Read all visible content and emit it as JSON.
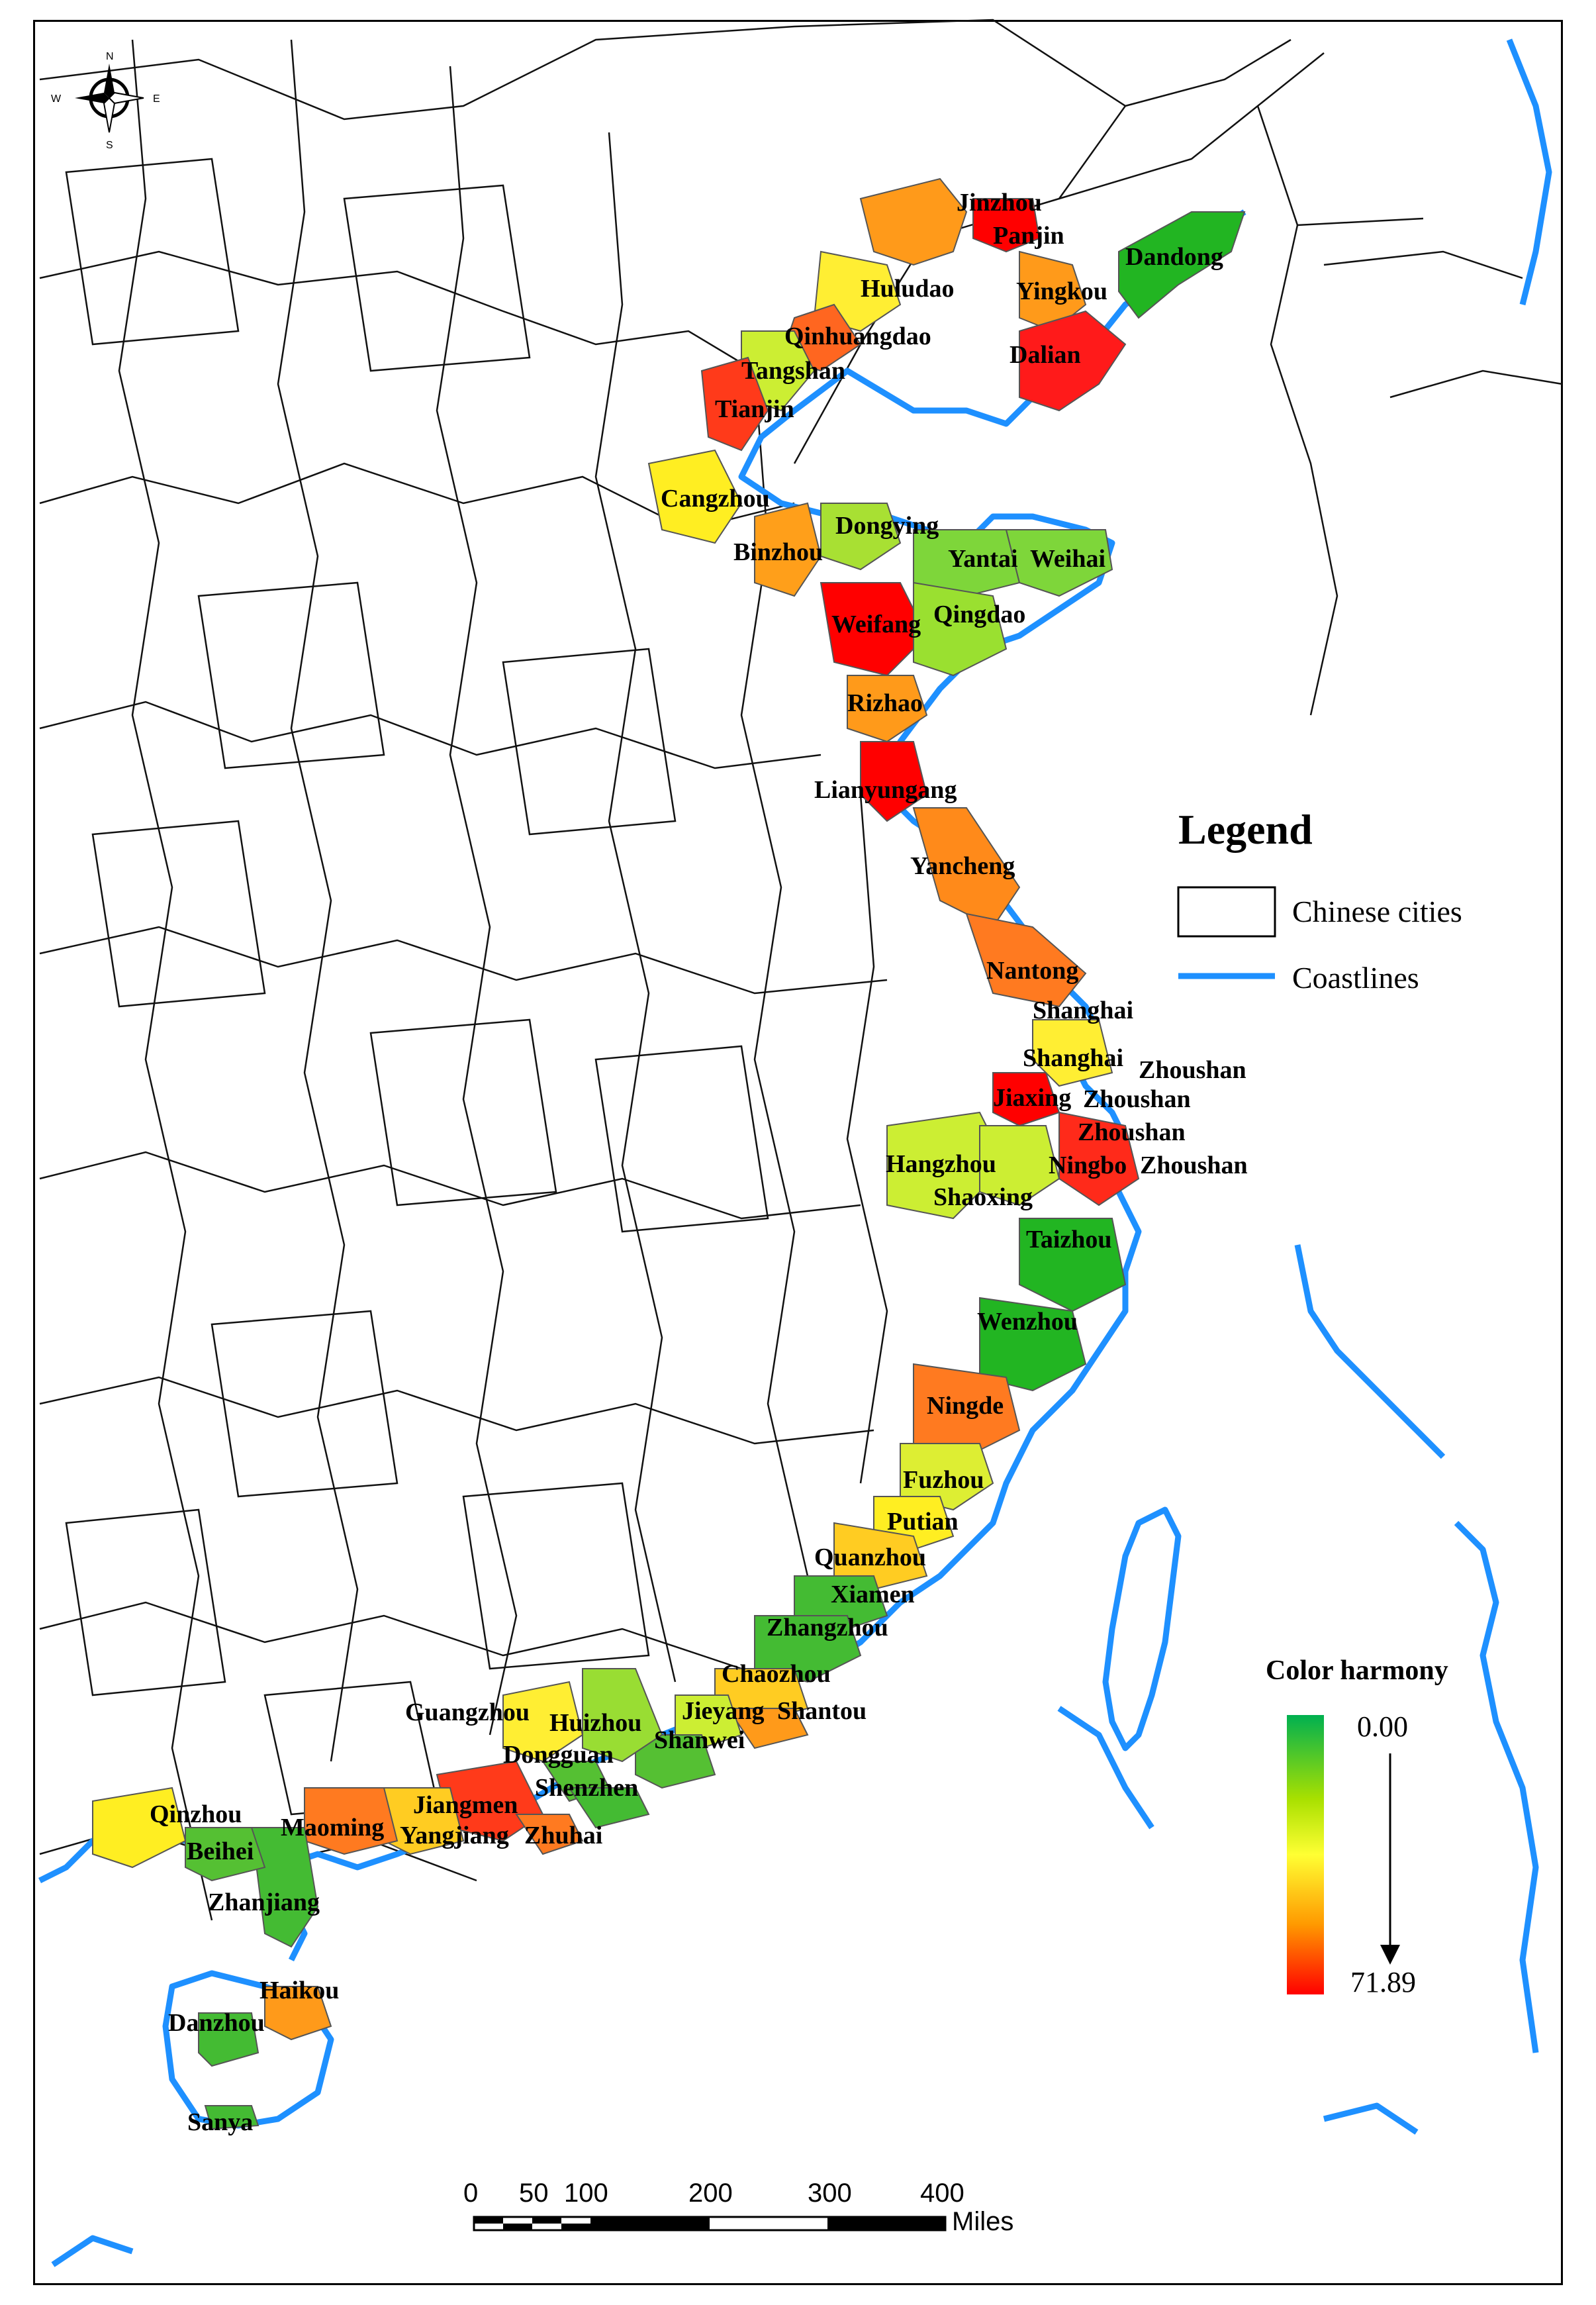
{
  "compass": {
    "n": "N",
    "s": "S",
    "e": "E",
    "w": "W"
  },
  "legend": {
    "title": "Legend",
    "cities_label": "Chinese cities",
    "coastline_label": "Coastlines",
    "coastline_color": "#1e90ff"
  },
  "color_scale": {
    "title": "Color harmony",
    "min_label": "0.00",
    "max_label": "71.89",
    "colors": [
      "#00b050",
      "#a8e000",
      "#ffff33",
      "#ff9900",
      "#ff0000"
    ]
  },
  "scale_bar": {
    "ticks": [
      "0",
      "50",
      "100",
      "200",
      "300",
      "400"
    ],
    "unit": "Miles"
  },
  "cities": [
    {
      "name": "Jinzhou",
      "color": "#ff9a1a"
    },
    {
      "name": "Panjin",
      "color": "#ff0000"
    },
    {
      "name": "Dandong",
      "color": "#22b522"
    },
    {
      "name": "Huludao",
      "color": "#ffee33"
    },
    {
      "name": "Yingkou",
      "color": "#ff9a1a"
    },
    {
      "name": "Qinhuangdao",
      "color": "#ff6620"
    },
    {
      "name": "Dalian",
      "color": "#ff1a1a"
    },
    {
      "name": "Tangshan",
      "color": "#ccee33"
    },
    {
      "name": "Tianjin",
      "color": "#ff3a1a"
    },
    {
      "name": "Cangzhou",
      "color": "#ffee22"
    },
    {
      "name": "Dongying",
      "color": "#a8e033"
    },
    {
      "name": "Binzhou",
      "color": "#ff9f1a"
    },
    {
      "name": "Yantai",
      "color": "#7ed63a"
    },
    {
      "name": "Weihai",
      "color": "#7ed63a"
    },
    {
      "name": "Weifang",
      "color": "#ff0000"
    },
    {
      "name": "Qingdao",
      "color": "#9ae030"
    },
    {
      "name": "Rizhao",
      "color": "#ff9a1a"
    },
    {
      "name": "Lianyungang",
      "color": "#ff0000"
    },
    {
      "name": "Yancheng",
      "color": "#ff8a1a"
    },
    {
      "name": "Nantong",
      "color": "#ff7a20"
    },
    {
      "name": "Shanghai",
      "color": "#1e90ff"
    },
    {
      "name": "Shanghai",
      "color": "#ffee33"
    },
    {
      "name": "Zhoushan",
      "color": "#ffffff"
    },
    {
      "name": "Jiaxing",
      "color": "#ff0000"
    },
    {
      "name": "Zhoushan",
      "color": "#ffffff"
    },
    {
      "name": "Zhoushan",
      "color": "#ff3a1a"
    },
    {
      "name": "Hangzhou",
      "color": "#ccee33"
    },
    {
      "name": "Ningbo",
      "color": "#ff2a1a"
    },
    {
      "name": "Zhoushan",
      "color": "#ffffff"
    },
    {
      "name": "Shaoxing",
      "color": "#ccee33"
    },
    {
      "name": "Taizhou",
      "color": "#22b522"
    },
    {
      "name": "Wenzhou",
      "color": "#22b522"
    },
    {
      "name": "Ningde",
      "color": "#ff7a20"
    },
    {
      "name": "Fuzhou",
      "color": "#ddee33"
    },
    {
      "name": "Putian",
      "color": "#ffee22"
    },
    {
      "name": "Quanzhou",
      "color": "#ffcc22"
    },
    {
      "name": "Xiamen",
      "color": "#44bb33"
    },
    {
      "name": "Zhangzhou",
      "color": "#44bb33"
    },
    {
      "name": "Chaozhou",
      "color": "#ffcc22"
    },
    {
      "name": "Guangzhou",
      "color": "#ffee33"
    },
    {
      "name": "Huizhou",
      "color": "#99dd33"
    },
    {
      "name": "Jieyang",
      "color": "#ccee33"
    },
    {
      "name": "Shantou",
      "color": "#ff9a1a"
    },
    {
      "name": "Shanwei",
      "color": "#55c033"
    },
    {
      "name": "Dongguan",
      "color": "#55c033"
    },
    {
      "name": "Shenzhen",
      "color": "#44bb33"
    },
    {
      "name": "Qinzhou",
      "color": "#ffee22"
    },
    {
      "name": "Jiangmen",
      "color": "#ff3a1a"
    },
    {
      "name": "Maoming",
      "color": "#ff7a20"
    },
    {
      "name": "Beihei",
      "color": "#55c033"
    },
    {
      "name": "Yangjiang",
      "color": "#ffcc22"
    },
    {
      "name": "Zhuhai",
      "color": "#ff7a20"
    },
    {
      "name": "Zhanjiang",
      "color": "#44bb33"
    },
    {
      "name": "Haikou",
      "color": "#ff9a1a"
    },
    {
      "name": "Danzhou",
      "color": "#44bb33"
    },
    {
      "name": "Sanya",
      "color": "#44bb33"
    }
  ]
}
